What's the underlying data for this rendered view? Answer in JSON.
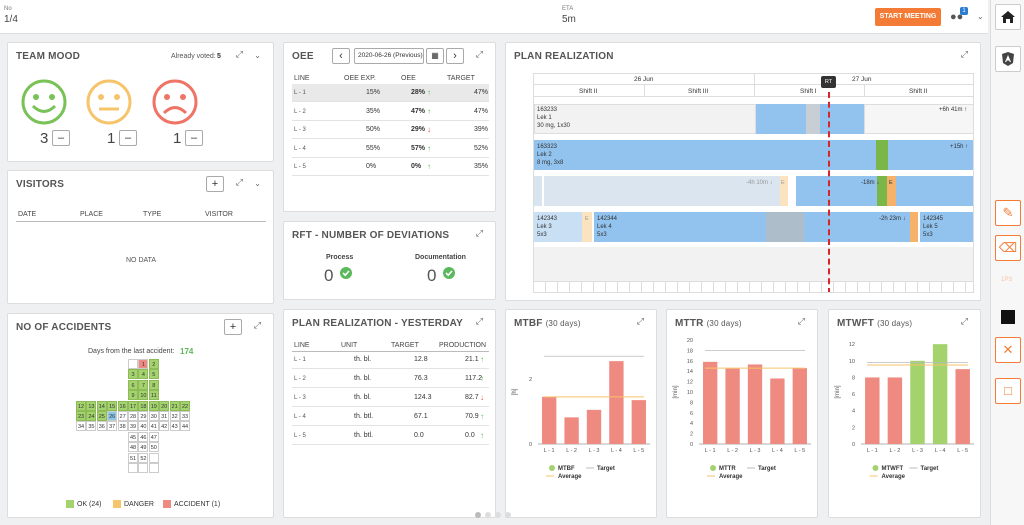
{
  "top": {
    "no_label": "No",
    "no_value": "1/4",
    "eta_label": "ETA",
    "eta_value": "5m",
    "start_meeting": "START MEETING",
    "badge": "1"
  },
  "sidebar": {
    "dots": "1PS"
  },
  "team_mood": {
    "title": "TEAM MOOD",
    "already_voted_label": "Already voted:",
    "already_voted": "5",
    "counts": [
      "3",
      "1",
      "1"
    ],
    "minus": "–"
  },
  "visitors": {
    "title": "VISITORS",
    "columns": [
      "DATE",
      "PLACE",
      "TYPE",
      "VISITOR"
    ],
    "empty": "NO DATA",
    "add": "+"
  },
  "accidents": {
    "title": "NO OF ACCIDENTS",
    "days_label": "Days from the last accident:",
    "days": "174",
    "add": "+",
    "legend": [
      {
        "label": "OK (24)",
        "color": "#a4d36e"
      },
      {
        "label": "DANGER",
        "color": "#f6c46a"
      },
      {
        "label": "ACCIDENT (1)",
        "color": "#ef8a80"
      }
    ],
    "cells": [
      {
        "n": "",
        "c": "empty"
      },
      {
        "n": "1",
        "c": "acc"
      },
      {
        "n": "2",
        "c": "ok"
      },
      {
        "n": "3",
        "c": "ok"
      },
      {
        "n": "4",
        "c": "ok"
      },
      {
        "n": "5",
        "c": "ok"
      },
      {
        "n": "6",
        "c": "ok"
      },
      {
        "n": "7",
        "c": "ok"
      },
      {
        "n": "8",
        "c": "ok"
      },
      {
        "n": "9",
        "c": "ok"
      },
      {
        "n": "10",
        "c": "ok"
      },
      {
        "n": "11",
        "c": "ok"
      },
      {
        "n": "12",
        "c": "ok"
      },
      {
        "n": "13",
        "c": "ok"
      },
      {
        "n": "14",
        "c": "ok"
      },
      {
        "n": "15",
        "c": "ok"
      },
      {
        "n": "16",
        "c": "ok"
      },
      {
        "n": "17",
        "c": "ok"
      },
      {
        "n": "18",
        "c": "ok"
      },
      {
        "n": "19",
        "c": "ok"
      },
      {
        "n": "20",
        "c": "ok"
      },
      {
        "n": "21",
        "c": "ok"
      },
      {
        "n": "22",
        "c": "ok"
      },
      {
        "n": "23",
        "c": "ok"
      },
      {
        "n": "24",
        "c": "ok"
      },
      {
        "n": "25",
        "c": "ok"
      },
      {
        "n": "26",
        "c": "cur"
      },
      {
        "n": "27",
        "c": ""
      },
      {
        "n": "28",
        "c": ""
      },
      {
        "n": "29",
        "c": ""
      },
      {
        "n": "30",
        "c": ""
      },
      {
        "n": "31",
        "c": ""
      },
      {
        "n": "32",
        "c": ""
      },
      {
        "n": "33",
        "c": ""
      },
      {
        "n": "34",
        "c": ""
      },
      {
        "n": "35",
        "c": ""
      },
      {
        "n": "36",
        "c": ""
      },
      {
        "n": "37",
        "c": ""
      },
      {
        "n": "38",
        "c": ""
      },
      {
        "n": "39",
        "c": ""
      },
      {
        "n": "40",
        "c": ""
      },
      {
        "n": "41",
        "c": ""
      },
      {
        "n": "42",
        "c": ""
      },
      {
        "n": "43",
        "c": ""
      },
      {
        "n": "44",
        "c": ""
      },
      {
        "n": "45",
        "c": ""
      },
      {
        "n": "46",
        "c": ""
      },
      {
        "n": "47",
        "c": ""
      },
      {
        "n": "48",
        "c": ""
      },
      {
        "n": "49",
        "c": ""
      },
      {
        "n": "50",
        "c": ""
      },
      {
        "n": "51",
        "c": ""
      },
      {
        "n": "52",
        "c": ""
      },
      {
        "n": "",
        "c": ""
      },
      {
        "n": "",
        "c": ""
      },
      {
        "n": "",
        "c": ""
      },
      {
        "n": "",
        "c": ""
      }
    ]
  },
  "oee": {
    "title": "OEE",
    "date": "2020-06-26 (Previous)",
    "columns": [
      "LINE",
      "OEE EXP.",
      "OEE",
      "TARGET"
    ],
    "rows": [
      {
        "line": "L - 1",
        "exp": "15%",
        "oee": "28%",
        "target": "47%",
        "dir": "up"
      },
      {
        "line": "L - 2",
        "exp": "35%",
        "oee": "47%",
        "target": "47%",
        "dir": "up"
      },
      {
        "line": "L - 3",
        "exp": "50%",
        "oee": "29%",
        "target": "39%",
        "dir": "down"
      },
      {
        "line": "L - 4",
        "exp": "55%",
        "oee": "57%",
        "target": "52%",
        "dir": "up"
      },
      {
        "line": "L - 5",
        "exp": "0%",
        "oee": "0%",
        "target": "35%",
        "dir": "up"
      }
    ]
  },
  "rft": {
    "title": "RFT - NUMBER OF DEVIATIONS",
    "items": [
      {
        "label": "Process",
        "value": "0"
      },
      {
        "label": "Documentation",
        "value": "0"
      }
    ]
  },
  "plan": {
    "title": "PLAN REALIZATION",
    "days": [
      "26 Jun",
      "27 Jun"
    ],
    "shifts": [
      "Shift II",
      "Shift III",
      "Shift I",
      "Shift II"
    ],
    "rt": "RT",
    "rows": [
      {
        "id": "163233",
        "name": "Lek 1",
        "dose": "30 mg, 1x30",
        "delta": "+6h 41m ↑"
      },
      {
        "id": "163323",
        "name": "Lek 2",
        "dose": "8 mg, 3x8",
        "delta": "+15h ↑"
      },
      {
        "delta_a": "-4h 10m ↓",
        "delta_b": "-18m ↓",
        "e": "E"
      },
      {
        "id": "142343",
        "name": "Lek 3",
        "dose": "5x3",
        "id2": "142344",
        "name2": "Lek 4",
        "dose2": "5x3",
        "delta": "-2h 23m ↓",
        "id3": "142345",
        "name3": "Lek 5",
        "dose3": "5x3",
        "e": "E"
      }
    ]
  },
  "plan_yesterday": {
    "title": "PLAN REALIZATION - YESTERDAY",
    "columns": [
      "LINE",
      "UNIT",
      "TARGET",
      "PRODUCTION"
    ],
    "rows": [
      {
        "line": "L - 1",
        "unit": "th. bl.",
        "target": "12.8",
        "prod": "21.1",
        "dir": "up"
      },
      {
        "line": "L - 2",
        "unit": "th. bl.",
        "target": "76.3",
        "prod": "117.2",
        "dir": "up"
      },
      {
        "line": "L - 3",
        "unit": "th. bl.",
        "target": "124.3",
        "prod": "82.7",
        "dir": "down"
      },
      {
        "line": "L - 4",
        "unit": "th. btl.",
        "target": "67.1",
        "prod": "70.9",
        "dir": "up"
      },
      {
        "line": "L - 5",
        "unit": "th. btl.",
        "target": "0.0",
        "prod": "0.0",
        "dir": "up"
      }
    ]
  },
  "chart_data": [
    {
      "type": "bar",
      "title": "MTBF",
      "subtitle": "(30 days)",
      "ylabel": "[h]",
      "categories": [
        "L - 1",
        "L - 2",
        "L - 3",
        "L - 4",
        "L - 5"
      ],
      "values": [
        1.45,
        0.82,
        1.05,
        2.55,
        1.35
      ],
      "colors": [
        "#ef8a80",
        "#ef8a80",
        "#ef8a80",
        "#ef8a80",
        "#ef8a80"
      ],
      "ylim": [
        0,
        3.2
      ],
      "ticks": [
        "0",
        "2"
      ],
      "tickvals": [
        0,
        2
      ],
      "average": 1.45,
      "target": 2.7,
      "legend": [
        "MTBF",
        "Target",
        "Average"
      ]
    },
    {
      "type": "bar",
      "title": "MTTR",
      "subtitle": "(30 days)",
      "ylabel": "[min]",
      "categories": [
        "L - 1",
        "L - 2",
        "L - 3",
        "L - 4",
        "L - 5"
      ],
      "values": [
        15.8,
        14.5,
        15.3,
        12.6,
        14.6
      ],
      "colors": [
        "#ef8a80",
        "#ef8a80",
        "#ef8a80",
        "#ef8a80",
        "#ef8a80"
      ],
      "ylim": [
        0,
        20
      ],
      "ticks": [
        "0",
        "2",
        "4",
        "6",
        "8",
        "10",
        "12",
        "14",
        "16",
        "18",
        "20"
      ],
      "tickvals": [
        0,
        2,
        4,
        6,
        8,
        10,
        12,
        14,
        16,
        18,
        20
      ],
      "average": 14.6,
      "target": 18,
      "legend": [
        "MTTR",
        "Target",
        "Average"
      ]
    },
    {
      "type": "bar",
      "title": "MTWFT",
      "subtitle": "(30 days)",
      "ylabel": "[min]",
      "categories": [
        "L - 1",
        "L - 2",
        "L - 3",
        "L - 4",
        "L - 5"
      ],
      "values": [
        8,
        8,
        10,
        12,
        9
      ],
      "colors": [
        "#ef8a80",
        "#ef8a80",
        "#a4d36e",
        "#a4d36e",
        "#ef8a80"
      ],
      "ylim": [
        0,
        12.5
      ],
      "ticks": [
        "0",
        "2",
        "4",
        "6",
        "8",
        "10",
        "12"
      ],
      "tickvals": [
        0,
        2,
        4,
        6,
        8,
        10,
        12
      ],
      "average": 9.5,
      "target": 9.8,
      "legend": [
        "MTWFT",
        "Target",
        "Average"
      ]
    }
  ]
}
